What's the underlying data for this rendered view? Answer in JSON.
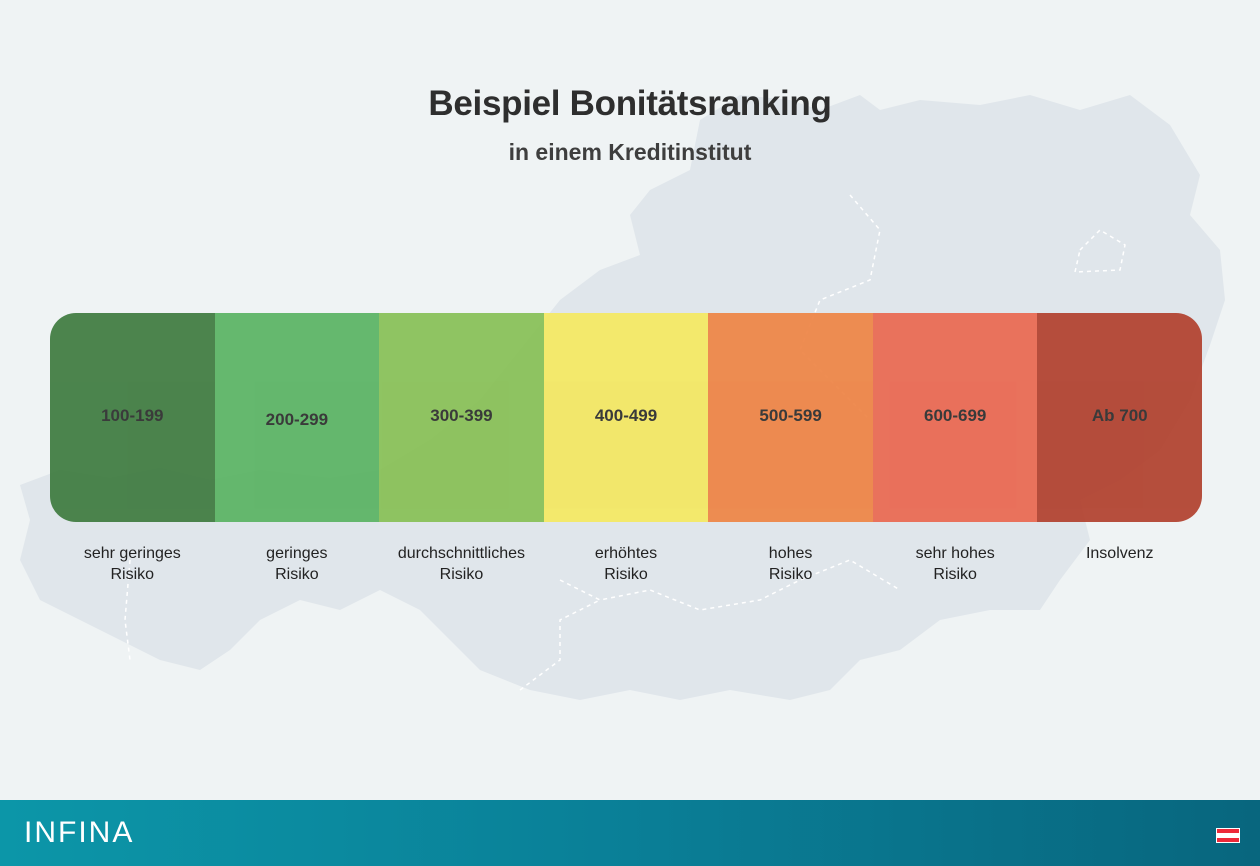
{
  "header": {
    "title": "Beispiel Bonitätsranking",
    "subtitle": "in einem Kreditinstitut"
  },
  "segments": [
    {
      "range": "100-199",
      "label_line1": "sehr geringes",
      "label_line2": "Risiko",
      "color": "#3f7b40"
    },
    {
      "range": "200-299",
      "label_line1": "geringes",
      "label_line2": "Risiko",
      "color": "#5ab363"
    },
    {
      "range": "300-399",
      "label_line1": "durchschnittliches",
      "label_line2": "Risiko",
      "color": "#88c056"
    },
    {
      "range": "400-499",
      "label_line1": "erhöhtes",
      "label_line2": "Risiko",
      "color": "#f4e862"
    },
    {
      "range": "500-599",
      "label_line1": "hohes",
      "label_line2": "Risiko",
      "color": "#ee8445"
    },
    {
      "range": "600-699",
      "label_line1": "sehr hohes",
      "label_line2": "Risiko",
      "color": "#ea6851"
    },
    {
      "range": "Ab 700",
      "label_line1": "Insolvenz",
      "label_line2": "",
      "color": "#b1412e"
    }
  ],
  "footer": {
    "logo_text": "INFINA",
    "flag_icon": "austria-flag-icon",
    "flag_colors": [
      "#ed2939",
      "#ffffff",
      "#ed2939"
    ],
    "background_color": "#0a8ca0"
  },
  "background": {
    "icon": "austria-map-silhouette",
    "color": "#dfe5ea"
  }
}
